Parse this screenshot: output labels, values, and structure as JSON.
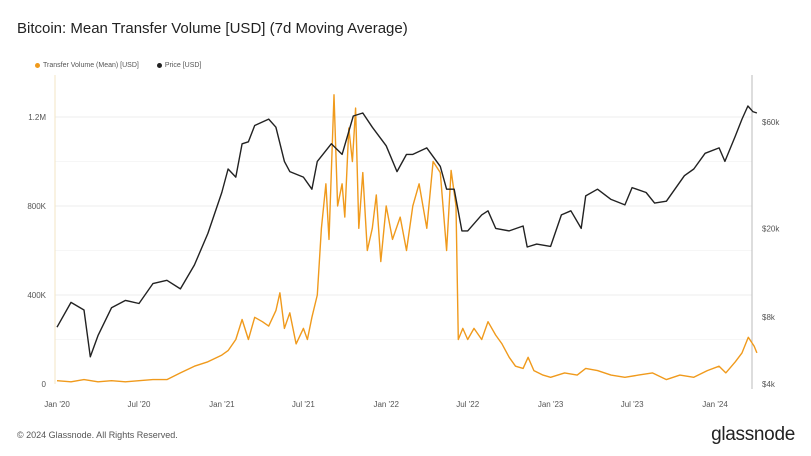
{
  "title": "Bitcoin: Mean Transfer Volume [USD] (7d Moving Average)",
  "footer": "© 2024 Glassnode. All Rights Reserved.",
  "logo": "glassnode",
  "chart_data": {
    "type": "line",
    "title": "Bitcoin: Mean Transfer Volume [USD] (7d Moving Average)",
    "legend_position": "top-left",
    "grid": true,
    "x_ticks": [
      "Jan '20",
      "Jul '20",
      "Jan '21",
      "Jul '21",
      "Jan '22",
      "Jul '22",
      "Jan '23",
      "Jul '23",
      "Jan '24"
    ],
    "x_tick_dates": [
      "2020-01-01",
      "2020-07-01",
      "2021-01-01",
      "2021-07-01",
      "2022-01-01",
      "2022-07-01",
      "2023-01-01",
      "2023-07-01",
      "2024-01-01"
    ],
    "xlim": [
      "2020-01-01",
      "2024-04-03"
    ],
    "y_left": {
      "ticks": [
        0,
        400000,
        800000,
        1200000
      ],
      "tick_labels": [
        "0",
        "400K",
        "800K",
        "1.2M"
      ],
      "ylim": [
        0,
        1200000
      ],
      "scale": "linear"
    },
    "y_right": {
      "ticks": [
        4000,
        8000,
        20000,
        60000
      ],
      "tick_labels": [
        "$4k",
        "$8k",
        "$20k",
        "$60k"
      ],
      "scale": "log"
    },
    "series": [
      {
        "name": "Transfer Volume (Mean) [USD]",
        "axis": "left",
        "color": "#f09a1c",
        "points": [
          [
            "2020-01-01",
            15000
          ],
          [
            "2020-02-01",
            10000
          ],
          [
            "2020-03-01",
            20000
          ],
          [
            "2020-04-01",
            10000
          ],
          [
            "2020-05-01",
            15000
          ],
          [
            "2020-06-01",
            10000
          ],
          [
            "2020-07-01",
            15000
          ],
          [
            "2020-08-01",
            20000
          ],
          [
            "2020-09-01",
            20000
          ],
          [
            "2020-10-01",
            50000
          ],
          [
            "2020-11-01",
            80000
          ],
          [
            "2020-12-01",
            100000
          ],
          [
            "2021-01-01",
            130000
          ],
          [
            "2021-01-15",
            150000
          ],
          [
            "2021-02-01",
            200000
          ],
          [
            "2021-02-15",
            290000
          ],
          [
            "2021-03-01",
            200000
          ],
          [
            "2021-03-15",
            300000
          ],
          [
            "2021-04-01",
            280000
          ],
          [
            "2021-04-15",
            260000
          ],
          [
            "2021-05-01",
            330000
          ],
          [
            "2021-05-10",
            410000
          ],
          [
            "2021-05-20",
            250000
          ],
          [
            "2021-06-01",
            320000
          ],
          [
            "2021-06-15",
            180000
          ],
          [
            "2021-07-01",
            250000
          ],
          [
            "2021-07-10",
            200000
          ],
          [
            "2021-07-20",
            300000
          ],
          [
            "2021-08-01",
            400000
          ],
          [
            "2021-08-10",
            700000
          ],
          [
            "2021-08-20",
            900000
          ],
          [
            "2021-08-27",
            650000
          ],
          [
            "2021-09-07",
            1300000
          ],
          [
            "2021-09-15",
            800000
          ],
          [
            "2021-09-25",
            900000
          ],
          [
            "2021-10-01",
            750000
          ],
          [
            "2021-10-10",
            1150000
          ],
          [
            "2021-10-18",
            1000000
          ],
          [
            "2021-10-25",
            1240000
          ],
          [
            "2021-11-01",
            700000
          ],
          [
            "2021-11-10",
            950000
          ],
          [
            "2021-11-20",
            600000
          ],
          [
            "2021-12-01",
            700000
          ],
          [
            "2021-12-10",
            850000
          ],
          [
            "2021-12-20",
            550000
          ],
          [
            "2022-01-01",
            800000
          ],
          [
            "2022-01-15",
            650000
          ],
          [
            "2022-02-01",
            750000
          ],
          [
            "2022-02-15",
            600000
          ],
          [
            "2022-03-01",
            800000
          ],
          [
            "2022-03-15",
            900000
          ],
          [
            "2022-04-01",
            700000
          ],
          [
            "2022-04-15",
            1000000
          ],
          [
            "2022-05-01",
            950000
          ],
          [
            "2022-05-15",
            600000
          ],
          [
            "2022-05-25",
            960000
          ],
          [
            "2022-06-05",
            800000
          ],
          [
            "2022-06-10",
            200000
          ],
          [
            "2022-06-20",
            250000
          ],
          [
            "2022-07-01",
            200000
          ],
          [
            "2022-07-15",
            250000
          ],
          [
            "2022-08-01",
            200000
          ],
          [
            "2022-08-15",
            280000
          ],
          [
            "2022-09-01",
            220000
          ],
          [
            "2022-09-15",
            180000
          ],
          [
            "2022-10-01",
            120000
          ],
          [
            "2022-10-15",
            80000
          ],
          [
            "2022-11-01",
            70000
          ],
          [
            "2022-11-12",
            120000
          ],
          [
            "2022-11-25",
            60000
          ],
          [
            "2022-12-15",
            40000
          ],
          [
            "2023-01-01",
            30000
          ],
          [
            "2023-02-01",
            50000
          ],
          [
            "2023-03-01",
            40000
          ],
          [
            "2023-03-20",
            70000
          ],
          [
            "2023-04-15",
            60000
          ],
          [
            "2023-05-15",
            40000
          ],
          [
            "2023-06-15",
            30000
          ],
          [
            "2023-07-15",
            40000
          ],
          [
            "2023-08-15",
            50000
          ],
          [
            "2023-09-15",
            20000
          ],
          [
            "2023-10-15",
            40000
          ],
          [
            "2023-11-15",
            30000
          ],
          [
            "2023-12-15",
            60000
          ],
          [
            "2024-01-10",
            80000
          ],
          [
            "2024-01-25",
            50000
          ],
          [
            "2024-02-15",
            100000
          ],
          [
            "2024-03-01",
            140000
          ],
          [
            "2024-03-15",
            210000
          ],
          [
            "2024-03-28",
            170000
          ],
          [
            "2024-04-03",
            140000
          ]
        ]
      },
      {
        "name": "Price [USD]",
        "axis": "right",
        "color": "#222222",
        "points": [
          [
            "2020-01-01",
            7200
          ],
          [
            "2020-02-01",
            9300
          ],
          [
            "2020-03-01",
            8600
          ],
          [
            "2020-03-15",
            5300
          ],
          [
            "2020-04-01",
            6600
          ],
          [
            "2020-05-01",
            8800
          ],
          [
            "2020-06-01",
            9500
          ],
          [
            "2020-07-01",
            9200
          ],
          [
            "2020-08-01",
            11300
          ],
          [
            "2020-09-01",
            11700
          ],
          [
            "2020-10-01",
            10700
          ],
          [
            "2020-11-01",
            13700
          ],
          [
            "2020-12-01",
            19000
          ],
          [
            "2021-01-01",
            29000
          ],
          [
            "2021-01-15",
            37000
          ],
          [
            "2021-02-01",
            34000
          ],
          [
            "2021-02-15",
            48000
          ],
          [
            "2021-03-01",
            49000
          ],
          [
            "2021-03-15",
            58000
          ],
          [
            "2021-04-15",
            62000
          ],
          [
            "2021-05-01",
            57000
          ],
          [
            "2021-05-20",
            40000
          ],
          [
            "2021-06-01",
            36000
          ],
          [
            "2021-07-01",
            34000
          ],
          [
            "2021-07-20",
            30000
          ],
          [
            "2021-08-01",
            40000
          ],
          [
            "2021-09-01",
            48000
          ],
          [
            "2021-09-25",
            43000
          ],
          [
            "2021-10-20",
            64000
          ],
          [
            "2021-11-10",
            66000
          ],
          [
            "2021-12-01",
            57000
          ],
          [
            "2022-01-01",
            47000
          ],
          [
            "2022-01-25",
            36000
          ],
          [
            "2022-02-15",
            43000
          ],
          [
            "2022-03-01",
            43000
          ],
          [
            "2022-04-01",
            46000
          ],
          [
            "2022-05-01",
            38000
          ],
          [
            "2022-05-15",
            30000
          ],
          [
            "2022-06-01",
            30000
          ],
          [
            "2022-06-18",
            19500
          ],
          [
            "2022-07-01",
            19500
          ],
          [
            "2022-08-01",
            23000
          ],
          [
            "2022-08-15",
            24000
          ],
          [
            "2022-09-01",
            20000
          ],
          [
            "2022-10-01",
            19500
          ],
          [
            "2022-11-01",
            20500
          ],
          [
            "2022-11-10",
            16500
          ],
          [
            "2022-12-01",
            17000
          ],
          [
            "2023-01-01",
            16600
          ],
          [
            "2023-01-25",
            23000
          ],
          [
            "2023-02-15",
            24000
          ],
          [
            "2023-03-10",
            20000
          ],
          [
            "2023-03-20",
            28000
          ],
          [
            "2023-04-15",
            30000
          ],
          [
            "2023-05-15",
            27000
          ],
          [
            "2023-06-15",
            25500
          ],
          [
            "2023-07-01",
            30500
          ],
          [
            "2023-08-01",
            29000
          ],
          [
            "2023-08-20",
            26000
          ],
          [
            "2023-09-15",
            26500
          ],
          [
            "2023-10-25",
            34500
          ],
          [
            "2023-11-15",
            37000
          ],
          [
            "2023-12-10",
            43500
          ],
          [
            "2024-01-10",
            46000
          ],
          [
            "2024-01-23",
            40000
          ],
          [
            "2024-02-15",
            52000
          ],
          [
            "2024-03-01",
            62000
          ],
          [
            "2024-03-14",
            71000
          ],
          [
            "2024-03-25",
            67000
          ],
          [
            "2024-04-03",
            66000
          ]
        ]
      }
    ]
  }
}
